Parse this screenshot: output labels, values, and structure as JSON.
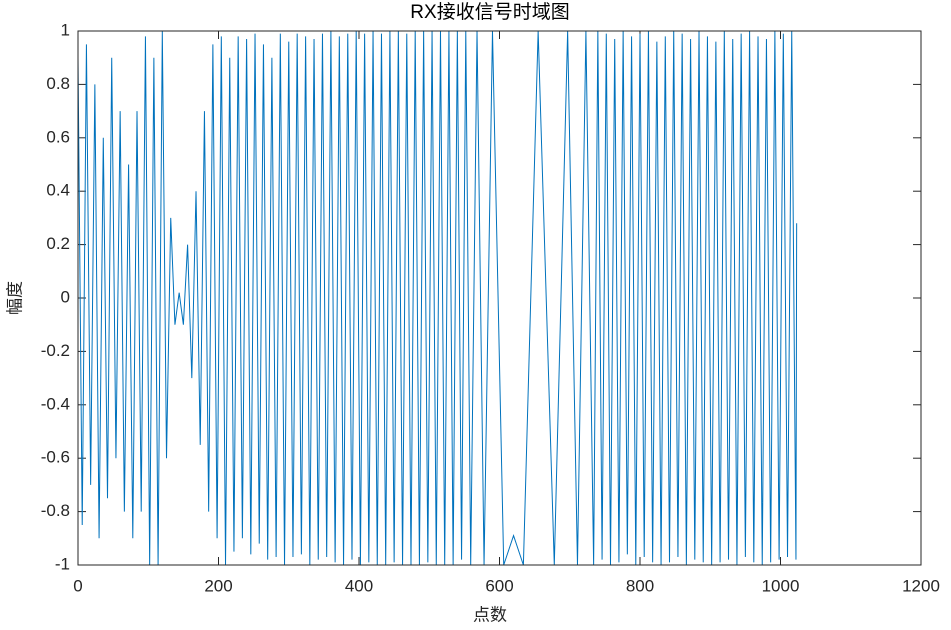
{
  "chart_data": {
    "type": "line",
    "title": "RX接收信号时域图",
    "x_label": "点数",
    "y_label": "幅度",
    "color": "#0072bd",
    "x": [
      0,
      6,
      12,
      18,
      24,
      30,
      36,
      42,
      48,
      54,
      60,
      66,
      72,
      78,
      84,
      90,
      96,
      102,
      108,
      114,
      120,
      126,
      132,
      138,
      144,
      150,
      156,
      162,
      168,
      174,
      180,
      186,
      192,
      198,
      204,
      210,
      216,
      222,
      228,
      234,
      240,
      246,
      252,
      258,
      264,
      270,
      276,
      282,
      288,
      294,
      300,
      306,
      312,
      318,
      324,
      330,
      336,
      342,
      348,
      354,
      360,
      366,
      372,
      378,
      384,
      390,
      396,
      402,
      408,
      414,
      420,
      426,
      432,
      438,
      444,
      450,
      456,
      462,
      468,
      474,
      480,
      486,
      492,
      498,
      504,
      510,
      516,
      522,
      528,
      534,
      540,
      546,
      552,
      559,
      568,
      578,
      590,
      606,
      620,
      634,
      655,
      678,
      697,
      711,
      723,
      734,
      740,
      746,
      752,
      758,
      764,
      770,
      776,
      782,
      788,
      794,
      800,
      806,
      812,
      818,
      824,
      830,
      836,
      842,
      848,
      854,
      860,
      866,
      872,
      878,
      884,
      890,
      896,
      902,
      908,
      914,
      920,
      926,
      932,
      938,
      944,
      950,
      956,
      962,
      968,
      974,
      980,
      986,
      992,
      998,
      1004,
      1010,
      1016,
      1022,
      1023
    ],
    "values": [
      0.9,
      -0.85,
      0.95,
      -0.7,
      0.8,
      -0.9,
      0.6,
      -0.75,
      0.9,
      -0.6,
      0.7,
      -0.8,
      0.5,
      -0.9,
      0.7,
      -0.8,
      0.98,
      -1,
      0.9,
      -1,
      1,
      -0.6,
      0.3,
      -0.1,
      0.02,
      -0.1,
      0.2,
      -0.3,
      0.4,
      -0.55,
      0.7,
      -0.8,
      0.95,
      -0.9,
      0.98,
      -1,
      0.9,
      -0.95,
      0.98,
      -0.9,
      0.97,
      -0.96,
      0.99,
      -0.92,
      0.95,
      -0.98,
      0.9,
      -0.97,
      0.99,
      -1,
      0.96,
      -0.97,
      0.99,
      -0.96,
      0.98,
      -1,
      0.97,
      -0.98,
      0.99,
      -0.97,
      1,
      -0.99,
      0.98,
      -1,
      0.99,
      -0.98,
      1,
      -1,
      0.99,
      -0.99,
      1,
      -1,
      0.99,
      -1,
      1,
      -0.99,
      1,
      -1,
      0.99,
      -1,
      1,
      -1,
      1,
      -0.99,
      1,
      -1,
      1,
      -1,
      1,
      -1,
      1,
      -0.98,
      1,
      -1,
      1,
      -1,
      1,
      -1,
      -0.89,
      -1,
      1,
      -1,
      1,
      -1,
      1,
      -1,
      1,
      -0.98,
      0.99,
      -1,
      0.97,
      -0.99,
      1,
      -0.96,
      0.98,
      -1,
      0.99,
      -0.97,
      1,
      -0.99,
      0.96,
      -1,
      0.98,
      -0.99,
      1,
      -0.97,
      0.99,
      -1,
      0.97,
      -0.98,
      1,
      -0.99,
      0.98,
      -1,
      0.96,
      -0.99,
      1,
      -0.98,
      0.97,
      -1,
      0.99,
      -0.97,
      1,
      -0.99,
      0.98,
      -1,
      0.97,
      -0.99,
      1,
      -0.98,
      0.99,
      -0.97,
      1,
      -0.98,
      0.28
    ],
    "xlim": [
      0,
      1200
    ],
    "xticks": [
      0,
      200,
      400,
      600,
      800,
      1000,
      1200
    ],
    "ylim": [
      -1,
      1
    ],
    "yticks": [
      -1,
      -0.8,
      -0.6,
      -0.4,
      -0.2,
      0,
      0.2,
      0.4,
      0.6,
      0.8,
      1
    ]
  }
}
